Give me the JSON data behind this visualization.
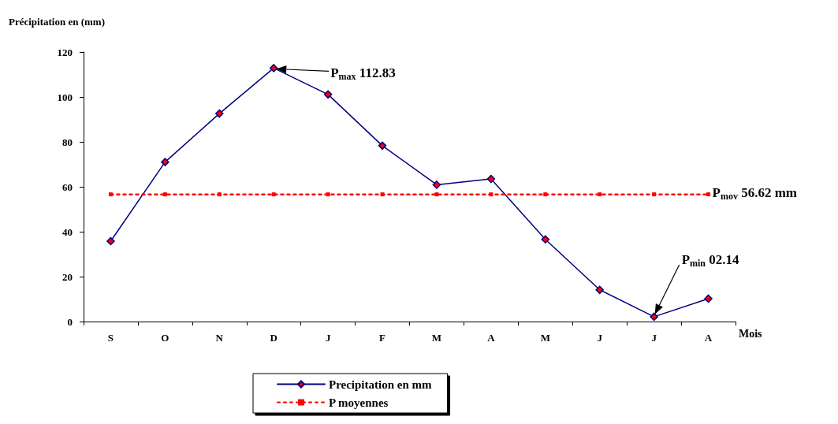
{
  "chart_data": {
    "type": "line",
    "ylabel": "Précipitation en (mm)",
    "xlabel": "Mois",
    "categories": [
      "S",
      "O",
      "N",
      "D",
      "J",
      "F",
      "M",
      "A",
      "M",
      "J",
      "J",
      "A"
    ],
    "series": [
      {
        "name": "Precipitation en mm",
        "color": "#000080",
        "marker": "diamond",
        "line_style": "solid",
        "values": [
          35.8,
          71.0,
          92.6,
          112.83,
          101.1,
          78.3,
          60.9,
          63.5,
          36.6,
          14.1,
          2.14,
          10.2
        ]
      },
      {
        "name": "P moyennes",
        "color": "#ff0000",
        "marker": "square",
        "line_style": "dotted",
        "values": [
          56.62,
          56.62,
          56.62,
          56.62,
          56.62,
          56.62,
          56.62,
          56.62,
          56.62,
          56.62,
          56.62,
          56.62
        ]
      }
    ],
    "annotations": [
      "P$_{max}$ 112.83",
      "P$_{mov}$ 56.62 mm",
      "P$_{min}$ 02.14"
    ],
    "ylim": [
      0,
      120
    ],
    "yticks": [
      0,
      20,
      40,
      60,
      80,
      100,
      120
    ],
    "grid": false,
    "legend": "bottom"
  }
}
